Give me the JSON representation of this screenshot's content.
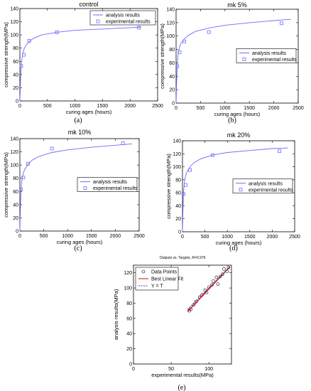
{
  "colors": {
    "model": "#6b6bff",
    "fit": "#e00000",
    "identity": "#3a3aa0",
    "axis": "#000000"
  },
  "chart_data": [
    {
      "id": "a",
      "type": "line",
      "sub_label": "(a)",
      "title": "control",
      "xlabel": "curing ages (hours)",
      "ylabel": "compressive strength(MPa)",
      "xlim": [
        0,
        2500
      ],
      "ylim": [
        0,
        140
      ],
      "xticks": [
        0,
        500,
        1000,
        1500,
        2000,
        2500
      ],
      "yticks": [
        0,
        20,
        40,
        60,
        80,
        100,
        120,
        140
      ],
      "legend_position": "top-right",
      "series": [
        {
          "name": "analysis results",
          "kind": "line",
          "x": [
            0,
            5,
            10,
            24,
            48,
            72,
            100,
            168,
            250,
            400,
            672,
            1000,
            1500,
            2000,
            2200
          ],
          "y": [
            0,
            12,
            28,
            55,
            70,
            78,
            83,
            90,
            95,
            100,
            104,
            107,
            109,
            111,
            112
          ]
        },
        {
          "name": "experimental results",
          "kind": "markers",
          "x": [
            24,
            72,
            168,
            672,
            2160
          ],
          "y": [
            53,
            70,
            91,
            104,
            111
          ]
        }
      ]
    },
    {
      "id": "b",
      "type": "line",
      "sub_label": "(b)",
      "title": "mk 5%",
      "xlabel": "curing ages (hours)",
      "ylabel": "compressive strength(MPa)",
      "xlim": [
        0,
        2500
      ],
      "ylim": [
        0,
        140
      ],
      "xticks": [
        0,
        500,
        1000,
        1500,
        2000,
        2500
      ],
      "yticks": [
        0,
        20,
        40,
        60,
        80,
        100,
        120,
        140
      ],
      "legend_position": "middle-right",
      "series": [
        {
          "name": "analysis results",
          "kind": "line",
          "x": [
            0,
            5,
            10,
            24,
            48,
            72,
            100,
            168,
            250,
            400,
            672,
            1000,
            1500,
            2000,
            2350
          ],
          "y": [
            0,
            12,
            30,
            60,
            76,
            84,
            89,
            96,
            101,
            107,
            112,
            116,
            120,
            123,
            125
          ]
        },
        {
          "name": "experimental results",
          "kind": "markers",
          "x": [
            24,
            72,
            168,
            672,
            2160
          ],
          "y": [
            55,
            76,
            92,
            106,
            119
          ]
        }
      ]
    },
    {
      "id": "c",
      "type": "line",
      "sub_label": "(c)",
      "title": "mk 10%",
      "xlabel": "curing ages (hours)",
      "ylabel": "compressive strength(MPa)",
      "xlim": [
        0,
        2500
      ],
      "ylim": [
        0,
        140
      ],
      "xticks": [
        0,
        500,
        1000,
        1500,
        2000,
        2500
      ],
      "yticks": [
        0,
        20,
        40,
        60,
        80,
        100,
        120,
        140
      ],
      "legend_position": "middle-right",
      "series": [
        {
          "name": "analysis results",
          "kind": "line",
          "x": [
            0,
            5,
            10,
            24,
            48,
            72,
            100,
            168,
            250,
            400,
            672,
            1000,
            1500,
            2000,
            2350
          ],
          "y": [
            0,
            14,
            32,
            62,
            80,
            88,
            93,
            101,
            107,
            113,
            119,
            123,
            127,
            130,
            132
          ]
        },
        {
          "name": "experimental results",
          "kind": "markers",
          "x": [
            24,
            72,
            168,
            672,
            2160
          ],
          "y": [
            63,
            81,
            102,
            125,
            133
          ]
        }
      ]
    },
    {
      "id": "d",
      "type": "line",
      "sub_label": "(d)",
      "title": "mk 20%",
      "xlabel": "curing ages (hours)",
      "ylabel": "compressive strength(MPa)",
      "xlim": [
        0,
        2500
      ],
      "ylim": [
        0,
        140
      ],
      "xticks": [
        0,
        500,
        1000,
        1500,
        2000,
        2500
      ],
      "yticks": [
        0,
        20,
        40,
        60,
        80,
        100,
        120,
        140
      ],
      "legend_position": "middle-right",
      "series": [
        {
          "name": "analysis results",
          "kind": "line",
          "x": [
            0,
            5,
            10,
            24,
            48,
            72,
            100,
            168,
            250,
            400,
            672,
            1000,
            1500,
            2000,
            2350
          ],
          "y": [
            0,
            14,
            32,
            62,
            79,
            87,
            92,
            100,
            106,
            112,
            118,
            122,
            125,
            128,
            129
          ]
        },
        {
          "name": "experimental results",
          "kind": "markers",
          "x": [
            24,
            72,
            168,
            672,
            2160
          ],
          "y": [
            58,
            72,
            95,
            118,
            124
          ]
        }
      ]
    },
    {
      "id": "e",
      "type": "scatter",
      "sub_label": "(e)",
      "title": "Outputs vs. Targets, R=0.976",
      "xlabel": "experimental results(MPa)",
      "ylabel": "analysis results(MPa)",
      "xlim": [
        0,
        130
      ],
      "ylim": [
        0,
        130
      ],
      "xticks": [
        0,
        50,
        100
      ],
      "yticks": [
        0,
        20,
        40,
        60,
        80,
        100,
        120
      ],
      "legend_position": "top-left",
      "series": [
        {
          "name": "Data Points",
          "kind": "circles",
          "x": [
            74,
            76,
            80,
            83,
            88,
            91,
            95,
            97,
            100,
            104,
            106,
            110,
            112,
            115,
            118,
            120,
            124,
            126
          ],
          "y": [
            70,
            72,
            78,
            82,
            88,
            91,
            97,
            94,
            101,
            104,
            109,
            114,
            105,
            115,
            118,
            125,
            122,
            127
          ]
        },
        {
          "name": "Best Linear Fit",
          "kind": "line",
          "x": [
            72,
            128
          ],
          "y": [
            69,
            128
          ]
        },
        {
          "name": "Y = T",
          "kind": "dashed",
          "x": [
            72,
            128
          ],
          "y": [
            72,
            128
          ]
        }
      ]
    }
  ]
}
